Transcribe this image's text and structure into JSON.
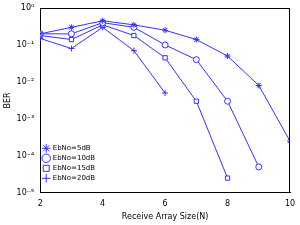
{
  "chart_data": {
    "type": "line",
    "xlabel": "Receive Array Size(N)",
    "ylabel": "BER",
    "x": [
      2,
      3,
      4,
      5,
      6,
      7,
      8,
      9,
      10
    ],
    "series": [
      {
        "name": "EbNo=5dB",
        "color": "#3333ff",
        "marker": "star",
        "line_style": "solid",
        "values": [
          0.2,
          0.3,
          0.45,
          0.35,
          0.25,
          0.14,
          0.05,
          0.008,
          0.00025
        ]
      },
      {
        "name": "EbNo=10dB",
        "color": "#3333ff",
        "marker": "circle",
        "line_style": "solid",
        "values": [
          0.2,
          0.2,
          0.4,
          0.3,
          0.1,
          0.04,
          0.003,
          5e-05,
          null
        ]
      },
      {
        "name": "EbNo=15dB",
        "color": "#3333ff",
        "marker": "square",
        "line_style": "solid",
        "values": [
          0.18,
          0.14,
          0.35,
          0.18,
          0.045,
          0.003,
          2.5e-05,
          null,
          null
        ]
      },
      {
        "name": "EbNo=20dB",
        "color": "#3333ff",
        "marker": "plus",
        "line_style": "solid",
        "values": [
          0.15,
          0.08,
          0.3,
          0.07,
          0.005,
          null,
          null,
          null,
          null
        ]
      }
    ],
    "xlim": [
      2,
      10
    ],
    "xticks": [
      2,
      4,
      6,
      8,
      10
    ],
    "ylim": [
      1e-05,
      1
    ],
    "yticks": [
      {
        "value": 1e-05,
        "label": "10⁻⁵"
      },
      {
        "value": 0.0001,
        "label": "10⁻⁴"
      },
      {
        "value": 0.001,
        "label": "10⁻³"
      },
      {
        "value": 0.01,
        "label": "10⁻²"
      },
      {
        "value": 0.1,
        "label": "10⁻¹"
      },
      {
        "value": 1,
        "label": "10⁰"
      }
    ],
    "log": "y",
    "grid": false,
    "legend": "top-right"
  }
}
